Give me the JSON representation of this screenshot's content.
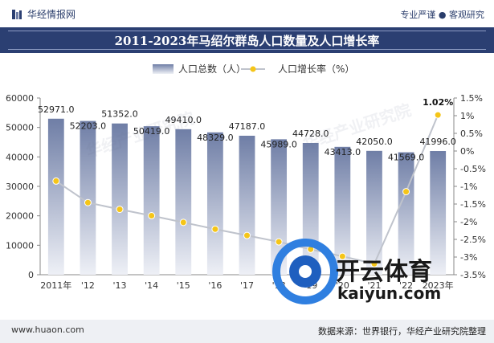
{
  "header": {
    "brand": "华经情报网",
    "slogan": "专业严谨 ● 客观研究",
    "title": "2011-2023年马绍尔群岛人口数量及人口增长率"
  },
  "footer": {
    "site": "www.huaon.com",
    "source": "数据来源：世界银行，华经产业研究院整理"
  },
  "watermark": {
    "text": "华经产业研究院",
    "logo_text": "开云体育",
    "logo_url_text": "kaiyun.com"
  },
  "colors": {
    "title_band": "#2b3f72",
    "bar_top": "#6f7ea6",
    "bar_bottom": "#eef0f6",
    "line": "#bfc3cc",
    "marker": "#f5c518"
  },
  "chart_data": {
    "type": "bar",
    "categories": [
      "2011年",
      "'12",
      "'13",
      "'14",
      "'15",
      "'16",
      "'17",
      "'18",
      "'19",
      "'20",
      "'21",
      "'22",
      "2023年"
    ],
    "series": [
      {
        "name": "人口总数（人）",
        "type": "bar",
        "axis": "left",
        "values": [
          52971.0,
          52203.0,
          51352.0,
          50419.0,
          49410.0,
          48329.0,
          47187.0,
          45989.0,
          44728.0,
          43413.0,
          42050.0,
          41569.0,
          41996.0
        ],
        "labels": [
          "52971.0",
          "52203.0",
          "51352.0",
          "50419.0",
          "49410.0",
          "48329.0",
          "47187.0",
          "45989.0",
          "44728.0",
          "43413.0",
          "42050.0",
          "41569.0",
          "41996.0"
        ]
      },
      {
        "name": "人口增长率（%）",
        "type": "line",
        "axis": "right",
        "values": [
          -0.85,
          -1.46,
          -1.65,
          -1.83,
          -2.02,
          -2.21,
          -2.39,
          -2.57,
          -2.78,
          -2.98,
          -3.19,
          -1.15,
          1.02
        ],
        "labels": [
          "",
          "",
          "",
          "",
          "",
          "",
          "",
          "",
          "",
          "",
          "",
          "",
          "1.02%"
        ]
      }
    ],
    "y_left": {
      "min": 0,
      "max": 60000,
      "ticks": [
        0,
        10000,
        20000,
        30000,
        40000,
        50000,
        60000
      ],
      "tick_labels": [
        "0",
        "10000",
        "20000",
        "30000",
        "40000",
        "50000",
        "60000"
      ]
    },
    "y_right": {
      "min": -3.5,
      "max": 1.5,
      "ticks": [
        1.5,
        1.0,
        0.5,
        0.0,
        -0.5,
        -1.0,
        -1.5,
        -2.0,
        -2.5,
        -3.0,
        -3.5
      ],
      "tick_labels": [
        "1.5%",
        "1%",
        "0.5%",
        "0%",
        "-0.5%",
        "-1%",
        "-1.5%",
        "-2%",
        "-2.5%",
        "-3%",
        "-3.5%"
      ]
    },
    "legend": {
      "position": "top-center",
      "entries": [
        "人口总数（人）",
        "人口增长率（%）"
      ]
    },
    "grid": false
  }
}
